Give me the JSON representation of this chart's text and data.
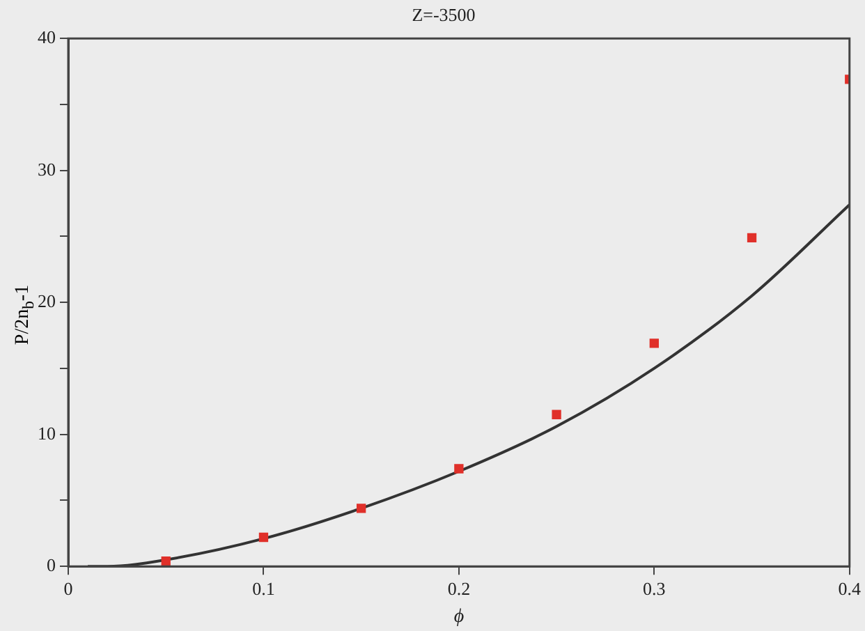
{
  "chart_data": {
    "type": "scatter",
    "title": "Z=-3500",
    "xlabel": "ϕ",
    "ylabel": "P/2n$_{b}$-1",
    "xlim": [
      0,
      0.4
    ],
    "xticks": [
      0,
      0.1,
      0.2,
      0.3,
      0.4
    ],
    "ylim": [
      0,
      40
    ],
    "yticks": [
      0,
      {
        "value": 5,
        "label": null
      },
      10,
      {
        "value": 15,
        "label": null
      },
      20,
      {
        "value": 25,
        "label": null
      },
      30,
      {
        "value": 35,
        "label": null
      },
      40
    ],
    "grid": false,
    "legend": false,
    "marker": "square",
    "series": [
      {
        "color": "#e0302a",
        "x": [
          0.05,
          0.1,
          0.15,
          0.2,
          0.25,
          0.3,
          0.35,
          0.4
        ],
        "values": [
          0.4,
          2.2,
          4.4,
          7.4,
          11.5,
          16.9,
          24.9,
          36.9
        ]
      },
      {
        "type": "line",
        "color": "#333333",
        "line_style": "solid",
        "marker": "none",
        "x": [
          0.01,
          0.02,
          0.05,
          0.1,
          0.15,
          0.2,
          0.25,
          0.3,
          0.35,
          0.4
        ],
        "values": [
          0,
          0,
          0.5,
          2.1,
          4.4,
          7.2,
          10.6,
          15.0,
          20.5,
          27.4
        ]
      }
    ]
  }
}
